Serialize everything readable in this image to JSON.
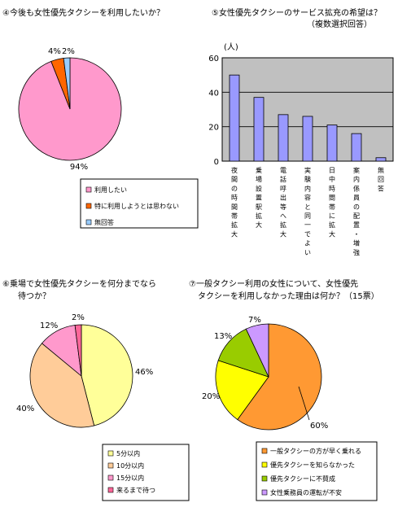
{
  "chart_data": [
    {
      "type": "pie",
      "title": "④今後も女性優先タクシーを利用したいか？",
      "labels": [
        "利用したい",
        "特に利用しようとは思わない",
        "無回答"
      ],
      "values": [
        94,
        4,
        2
      ],
      "value_labels": [
        "94%",
        "4%",
        "2%"
      ],
      "colors": [
        "#ff99cc",
        "#ff6600",
        "#99ccff"
      ],
      "legend_position": "below"
    },
    {
      "type": "bar",
      "title": "⑤女性優先タクシーのサービス拡充の希望は？",
      "subtitle": "（複数選択回答）",
      "ylabel": "(人)",
      "ylim": [
        0,
        60
      ],
      "yticks": [
        0,
        20,
        40,
        60
      ],
      "grid": true,
      "categories": [
        "夜間の時間帯拡大",
        "乗場設置駅拡大",
        "電話呼出等へ拡大",
        "実験内容と同一でよい",
        "日中時間帯に拡大",
        "案内係員の配置・増強",
        "無回答"
      ],
      "values": [
        50,
        37,
        27,
        26,
        21,
        16,
        2
      ],
      "bar_color": "#9999ff",
      "plot_background": "#c0c0c0"
    },
    {
      "type": "pie",
      "title": "⑥乗場で女性優先タクシーを何分までなら待つか？",
      "title_lines": [
        "⑥乗場で女性優先タクシーを何分までなら",
        "待つか？"
      ],
      "labels": [
        "5分以内",
        "10分以内",
        "15分以内",
        "来るまで待つ"
      ],
      "values": [
        46,
        40,
        12,
        2
      ],
      "value_labels": [
        "46%",
        "40%",
        "12%",
        "2%"
      ],
      "colors": [
        "#ffff99",
        "#ffcc99",
        "#ff99cc",
        "#ff6699"
      ],
      "legend_position": "below"
    },
    {
      "type": "pie",
      "title": "⑦一般タクシー利用の女性について、女性優先タクシーを利用しなかった理由は何か？（15票）",
      "title_lines": [
        "⑦一般タクシー利用の女性について、女性優先",
        "タクシーを利用しなかった理由は何か？（15票）"
      ],
      "labels": [
        "一般タクシーの方が早く乗れる",
        "優先タクシーを知らなかった",
        "優先タクシーに不賛成",
        "女性乗務員の運転が不安"
      ],
      "values": [
        60,
        20,
        13,
        7
      ],
      "value_labels": [
        "60%",
        "20%",
        "13%",
        "7%"
      ],
      "colors": [
        "#ff9933",
        "#ffff00",
        "#99cc00",
        "#cc99ff"
      ],
      "legend_position": "below"
    }
  ]
}
